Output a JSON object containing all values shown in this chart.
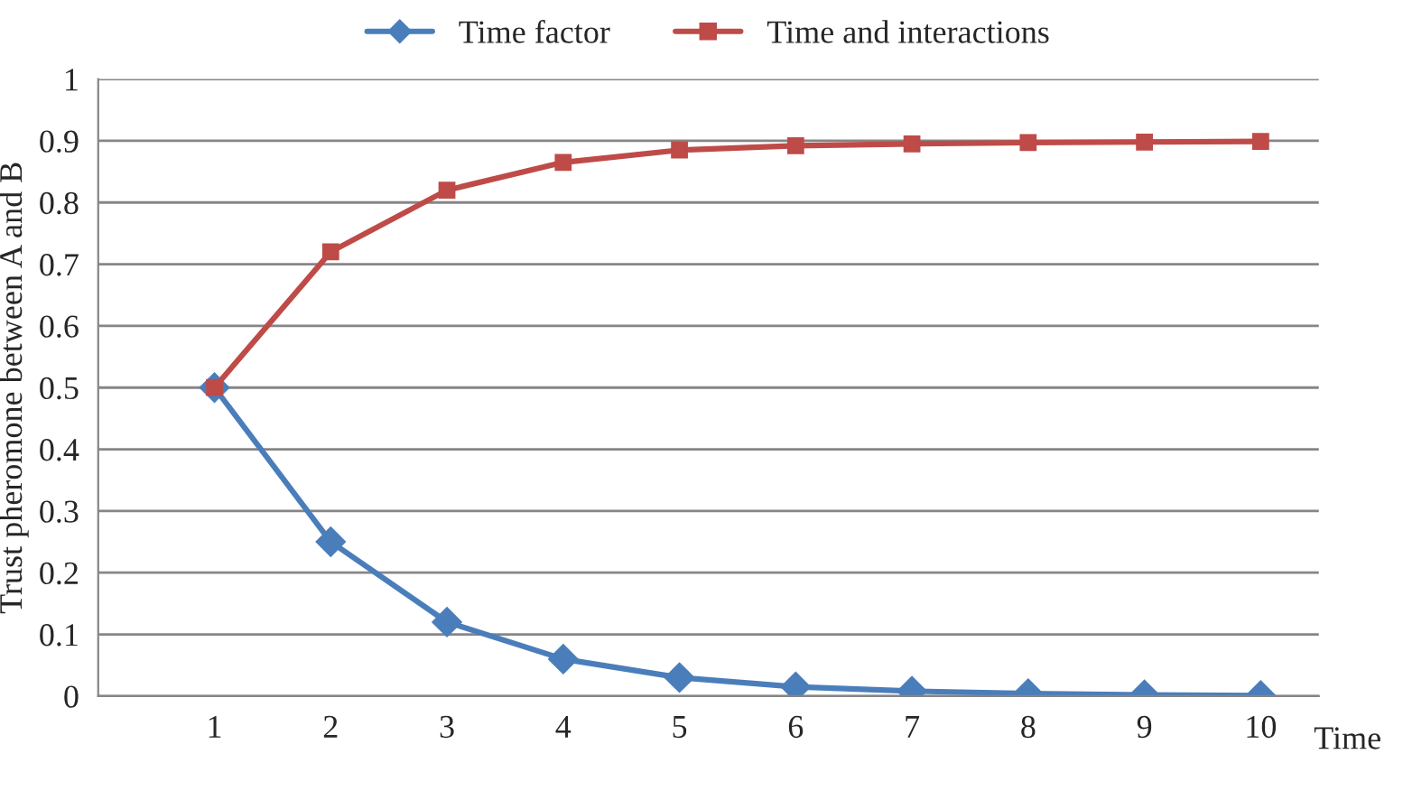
{
  "chart_data": {
    "type": "line",
    "xlabel": "Time",
    "ylabel": "Trust pheromone between A and B",
    "categories": [
      "1",
      "2",
      "3",
      "4",
      "5",
      "6",
      "7",
      "8",
      "9",
      "10"
    ],
    "series": [
      {
        "name": "Time factor",
        "color": "#4a7ebb",
        "marker": "diamond",
        "values": [
          0.5,
          0.25,
          0.12,
          0.06,
          0.03,
          0.015,
          0.008,
          0.004,
          0.002,
          0.001
        ]
      },
      {
        "name": "Time and interactions",
        "color": "#be4b48",
        "marker": "square",
        "values": [
          0.5,
          0.72,
          0.82,
          0.865,
          0.885,
          0.892,
          0.895,
          0.897,
          0.898,
          0.899
        ]
      }
    ],
    "ylim": [
      0,
      1
    ],
    "yticks": [
      0,
      0.1,
      0.2,
      0.3,
      0.4,
      0.5,
      0.6,
      0.7,
      0.8,
      0.9,
      1
    ],
    "grid": "y",
    "legend": "top",
    "line_style": "solid"
  }
}
